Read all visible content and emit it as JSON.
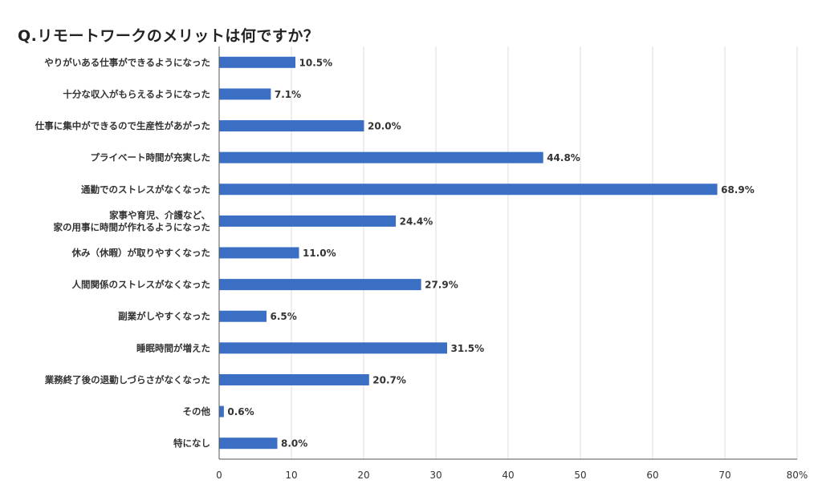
{
  "chart_data": {
    "type": "bar",
    "orientation": "horizontal",
    "title": "Q.リモートワークのメリットは何ですか？",
    "categories": [
      [
        "やりがいある仕事ができるようになった"
      ],
      [
        "十分な収入がもらえるようになった"
      ],
      [
        "仕事に集中ができるので生産性があがった"
      ],
      [
        "プライベート時間が充実した"
      ],
      [
        "通勤でのストレスがなくなった"
      ],
      [
        "家事や育児、介護など、",
        "家の用事に時間が作れるようになった"
      ],
      [
        "休み（休暇）が取りやすくなった"
      ],
      [
        "人間関係のストレスがなくなった"
      ],
      [
        "副業がしやすくなった"
      ],
      [
        "睡眠時間が増えた"
      ],
      [
        "業務終了後の退勤しづらさがなくなった"
      ],
      [
        "その他"
      ],
      [
        "特になし"
      ]
    ],
    "values": [
      10.5,
      7.1,
      20.0,
      44.8,
      68.9,
      24.4,
      11.0,
      27.9,
      6.5,
      31.5,
      20.7,
      0.6,
      8.0
    ],
    "value_labels": [
      "10.5%",
      "7.1%",
      "20.0%",
      "44.8%",
      "68.9%",
      "24.4%",
      "11.0%",
      "27.9%",
      "6.5%",
      "31.5%",
      "20.7%",
      "0.6%",
      "8.0%"
    ],
    "x_ticks": [
      "0",
      "10",
      "20",
      "30",
      "40",
      "50",
      "60",
      "70",
      "80%"
    ],
    "xlim": [
      0,
      80
    ],
    "xlabel": "",
    "ylabel": "",
    "grid": "vertical",
    "bar_color": "#3a6fc4",
    "grid_color": "#dddddd",
    "axis_color": "#555555"
  }
}
